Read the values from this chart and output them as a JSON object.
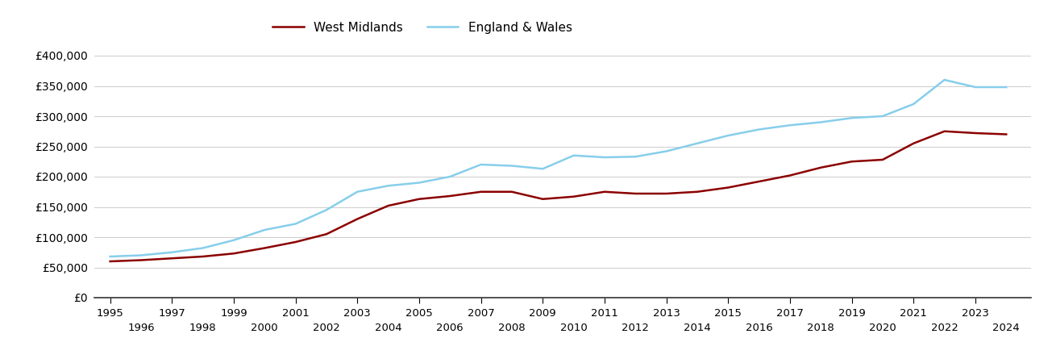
{
  "west_midlands": {
    "years": [
      1995,
      1996,
      1997,
      1998,
      1999,
      2000,
      2001,
      2002,
      2003,
      2004,
      2005,
      2006,
      2007,
      2008,
      2009,
      2010,
      2011,
      2012,
      2013,
      2014,
      2015,
      2016,
      2017,
      2018,
      2019,
      2020,
      2021,
      2022,
      2023,
      2024
    ],
    "values": [
      60000,
      62000,
      65000,
      68000,
      73000,
      82000,
      92000,
      105000,
      130000,
      152000,
      163000,
      168000,
      175000,
      175000,
      163000,
      167000,
      175000,
      172000,
      172000,
      175000,
      182000,
      192000,
      202000,
      215000,
      225000,
      228000,
      255000,
      275000,
      272000,
      270000
    ]
  },
  "england_wales": {
    "years": [
      1995,
      1996,
      1997,
      1998,
      1999,
      2000,
      2001,
      2002,
      2003,
      2004,
      2005,
      2006,
      2007,
      2008,
      2009,
      2010,
      2011,
      2012,
      2013,
      2014,
      2015,
      2016,
      2017,
      2018,
      2019,
      2020,
      2021,
      2022,
      2023,
      2024
    ],
    "values": [
      68000,
      70000,
      75000,
      82000,
      95000,
      112000,
      122000,
      145000,
      175000,
      185000,
      190000,
      200000,
      220000,
      218000,
      213000,
      235000,
      232000,
      233000,
      242000,
      255000,
      268000,
      278000,
      285000,
      290000,
      297000,
      300000,
      320000,
      360000,
      348000,
      348000
    ]
  },
  "west_midlands_color": "#8B0000",
  "england_wales_color": "#87CEEB",
  "west_midlands_label": "West Midlands",
  "england_wales_label": "England & Wales",
  "background_color": "#ffffff",
  "grid_color": "#cccccc",
  "ylim": [
    0,
    420000
  ],
  "yticks": [
    0,
    50000,
    100000,
    150000,
    200000,
    250000,
    300000,
    350000,
    400000
  ],
  "xlim": [
    1994.5,
    2024.8
  ],
  "line_width": 1.8,
  "figsize": [
    13.05,
    4.5
  ],
  "dpi": 100
}
